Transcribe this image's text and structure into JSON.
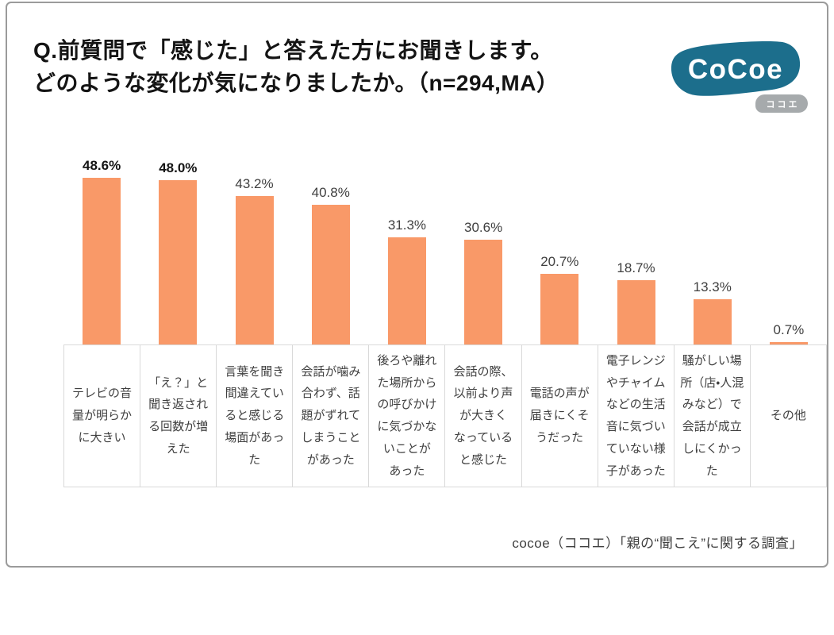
{
  "title": {
    "line1": "Q.前質問で「感じた」と答えた方にお聞きします。",
    "line2": "どのような変化が気になりましたか。（n=294,MA）"
  },
  "logo": {
    "text": "CoCoe",
    "subtext": "ココエ",
    "blob_color": "#1C6E8C",
    "pill_color": "#A6AAAC"
  },
  "source": "cocoe（ココエ）「親の“聞こえ”に関する調査」",
  "chart_data": {
    "type": "bar",
    "title": "Q.前質問で「感じた」と答えた方にお聞きします。どのような変化が気になりましたか。",
    "sample_note": "n=294,MA",
    "categories": [
      "テレビの音量が明らかに大きい",
      "「え？」と聞き返される回数が増えた",
      "言葉を聞き間違えていると感じる場面があった",
      "会話が噛み合わず、話題がずれてしまうことがあった",
      "後ろや離れた場所からの呼びかけに気づかないことがあった",
      "会話の際、以前より声が大きくなっていると感じた",
      "電話の声が届きにくそうだった",
      "電子レンジやチャイムなどの生活音に気づいていない様子があった",
      "騒がしい場所（店・人混みなど）で会話が成立しにくかった",
      "その他"
    ],
    "values": [
      48.6,
      48.0,
      43.2,
      40.8,
      31.3,
      30.6,
      20.7,
      18.7,
      13.3,
      0.7
    ],
    "value_labels": [
      "48.6%",
      "48.0%",
      "43.2%",
      "40.8%",
      "31.3%",
      "30.6%",
      "20.7%",
      "18.7%",
      "13.3%",
      "0.7%"
    ],
    "emphasized_count": 2,
    "bar_color": "#F99968",
    "xlabel": "",
    "ylabel": "",
    "ylim": [
      0,
      50
    ],
    "grid": false,
    "legend": false
  }
}
